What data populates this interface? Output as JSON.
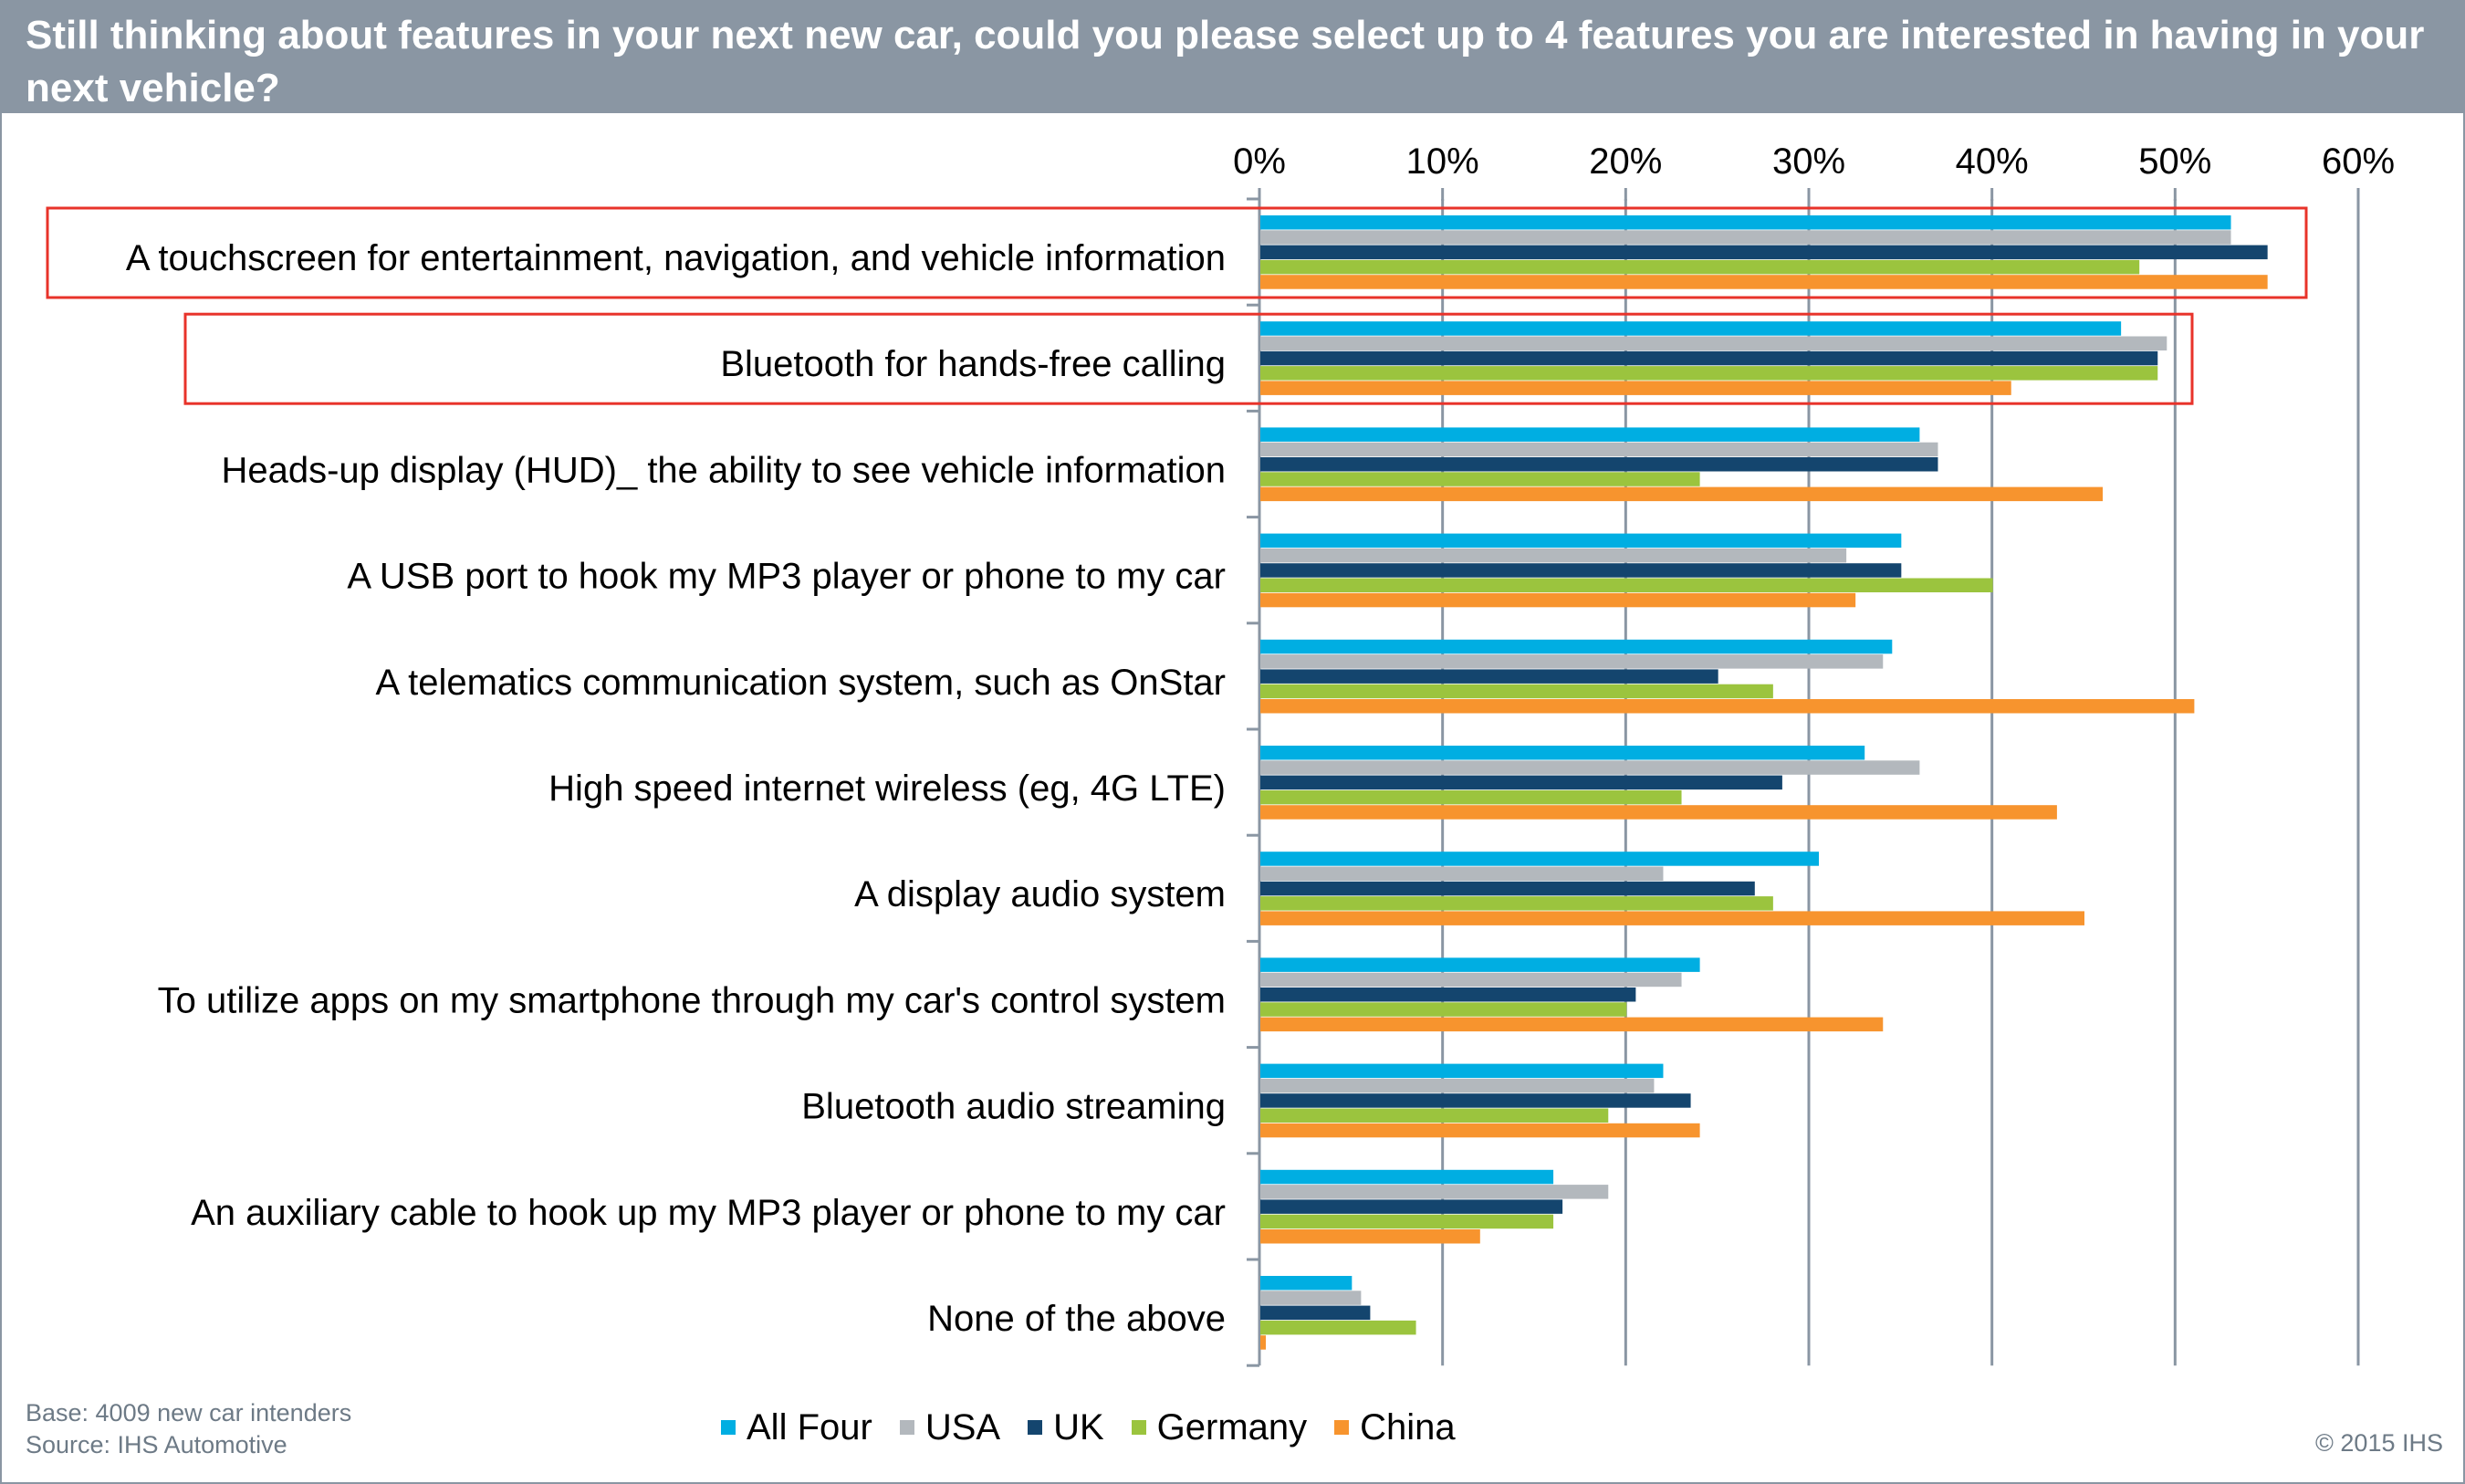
{
  "header": {
    "title": "Still thinking about features in your next new car, could you please select up to 4 features you are interested in having in your next vehicle?"
  },
  "footer": {
    "base": "Base: 4009 new car intenders",
    "source": "Source: IHS Automotive",
    "copyright": "© 2015 IHS"
  },
  "colors": {
    "header_bg": "#8a96a3",
    "highlight_box": "#e8332a",
    "gridline": "#8a96a3"
  },
  "chart_data": {
    "type": "bar",
    "orientation": "horizontal",
    "title": "Still thinking about features in your next new car, could you please select up to 4 features you are interested in having in your next vehicle?",
    "xaxis_ticks": [
      "0%",
      "10%",
      "20%",
      "30%",
      "40%",
      "50%",
      "60%"
    ],
    "xlim": [
      0,
      60
    ],
    "xaxis_position": "top",
    "grid": true,
    "legend_position": "bottom",
    "categories": [
      "A touchscreen for entertainment, navigation, and vehicle information",
      "Bluetooth for hands-free calling",
      "Heads-up display (HUD)_ the ability to see vehicle information",
      "A USB port to hook my MP3 player or phone to my car",
      "A telematics communication system, such as OnStar",
      "High speed internet wireless (eg, 4G LTE)",
      "A display audio system",
      "To utilize apps on my smartphone through my car's control system",
      "Bluetooth audio streaming",
      "An auxiliary cable to hook up my MP3 player or phone to my car",
      "None of the above"
    ],
    "series": [
      {
        "name": "All Four",
        "color": "#00aee2",
        "values": [
          53,
          47,
          36,
          35,
          34.5,
          33,
          30.5,
          24,
          22,
          16,
          5
        ]
      },
      {
        "name": "USA",
        "color": "#b3b8bd",
        "values": [
          53,
          49.5,
          37,
          32,
          34,
          36,
          22,
          23,
          21.5,
          19,
          5.5
        ]
      },
      {
        "name": "UK",
        "color": "#14456e",
        "values": [
          55,
          49,
          37,
          35,
          25,
          28.5,
          27,
          20.5,
          23.5,
          16.5,
          6
        ]
      },
      {
        "name": "Germany",
        "color": "#9bc43e",
        "values": [
          48,
          49,
          24,
          40,
          28,
          23,
          28,
          20,
          19,
          16,
          8.5
        ]
      },
      {
        "name": "China",
        "color": "#f7942e",
        "values": [
          55,
          41,
          46,
          32.5,
          51,
          43.5,
          45,
          34,
          24,
          12,
          0.3
        ]
      }
    ],
    "highlighted_categories": [
      0,
      1
    ]
  }
}
